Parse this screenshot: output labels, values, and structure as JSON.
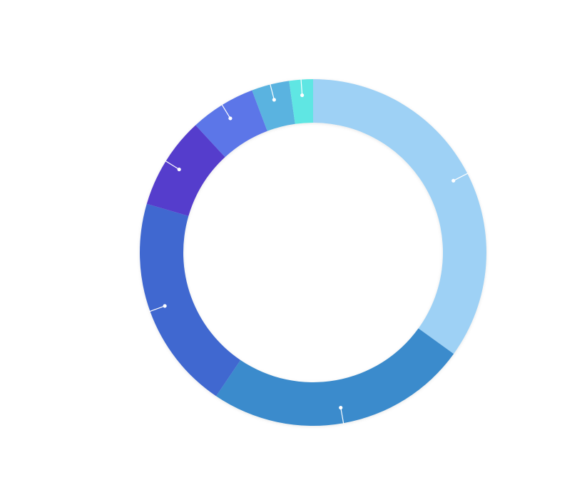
{
  "chart_data": {
    "type": "pie",
    "variant": "donut",
    "title": "",
    "legend": "none",
    "slices": [
      {
        "value": 26.8,
        "color": "#9ed1f5"
      },
      {
        "value": 18.8,
        "color": "#3a8bcc"
      },
      {
        "value": 15.4,
        "color": "#3f68d0"
      },
      {
        "value": 6.6,
        "color": "#553ccc"
      },
      {
        "value": 4.7,
        "color": "#5b76e8"
      },
      {
        "value": 2.7,
        "color": "#5ab3e0"
      },
      {
        "value": 1.7,
        "color": "#5ee6e3"
      }
    ]
  }
}
